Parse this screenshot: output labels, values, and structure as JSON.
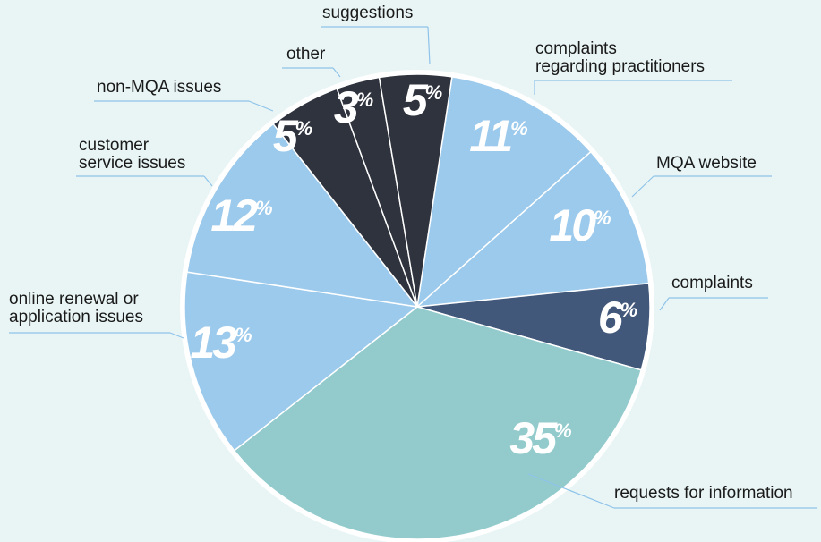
{
  "chart_data": {
    "type": "pie",
    "categories": [
      "complaints\nregarding practitioners",
      "MQA website",
      "complaints",
      "requests for information",
      "online renewal or\napplication issues",
      "customer\nservice issues",
      "non-MQA issues",
      "other",
      "suggestions"
    ],
    "values": [
      11,
      10,
      6,
      35,
      13,
      12,
      5,
      3,
      5
    ],
    "value_labels": [
      "11%",
      "10%",
      "6%",
      "35%",
      "13%",
      "12%",
      "5%",
      "3%",
      "5%"
    ],
    "colors": [
      "#9ccaec",
      "#9ccaec",
      "#42587a",
      "#93cbcd",
      "#9ccaec",
      "#9ccaec",
      "#2f333e",
      "#2f333e",
      "#2f333e"
    ]
  }
}
